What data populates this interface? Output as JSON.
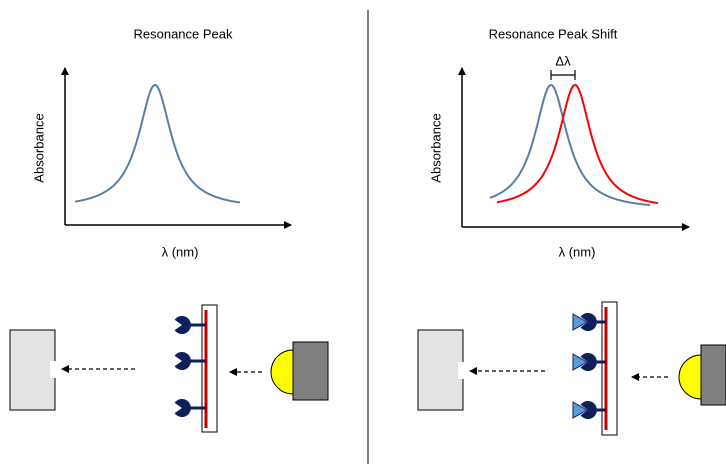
{
  "left": {
    "title": "Resonance Peak",
    "y_label": "Absorbance",
    "x_label": "λ (nm)"
  },
  "right": {
    "title": "Resonance Peak Shift",
    "y_label": "Absorbance",
    "x_label": "λ (nm)",
    "shift_label": "Δλ"
  }
}
